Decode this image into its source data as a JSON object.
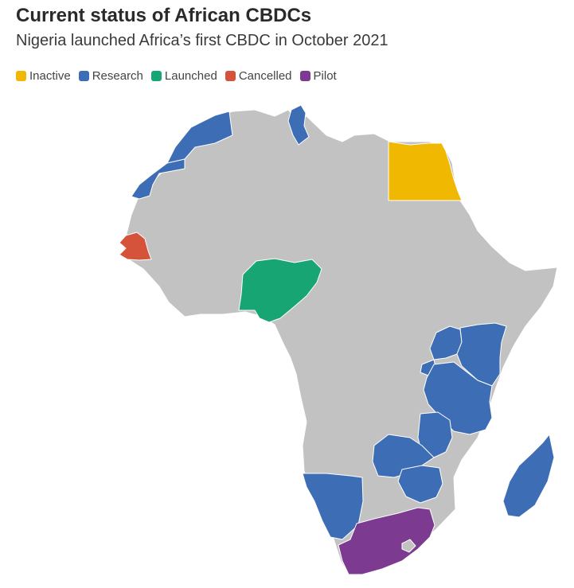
{
  "header": {
    "title": "Current status of African CBDCs",
    "subtitle": "Nigeria launched Africa’s first CBDC in October 2021"
  },
  "legend": [
    {
      "label": "Inactive",
      "status": "inactive"
    },
    {
      "label": "Research",
      "status": "research"
    },
    {
      "label": "Launched",
      "status": "launched"
    },
    {
      "label": "Cancelled",
      "status": "cancelled"
    },
    {
      "label": "Pilot",
      "status": "pilot"
    }
  ],
  "colors": {
    "inactive": "#f0b800",
    "research": "#3d6db5",
    "launched": "#17a673",
    "cancelled": "#d5533b",
    "pilot": "#7c3b91",
    "none": "#c2c2c2",
    "border": "#ffffff"
  },
  "countries": [
    {
      "name": "Morocco",
      "status": "research"
    },
    {
      "name": "Western Sahara",
      "status": "research"
    },
    {
      "name": "Tunisia",
      "status": "research"
    },
    {
      "name": "Egypt",
      "status": "inactive"
    },
    {
      "name": "Senegal",
      "status": "cancelled"
    },
    {
      "name": "Nigeria",
      "status": "launched"
    },
    {
      "name": "Uganda",
      "status": "research"
    },
    {
      "name": "Kenya",
      "status": "research"
    },
    {
      "name": "Rwanda",
      "status": "research"
    },
    {
      "name": "Tanzania",
      "status": "research"
    },
    {
      "name": "Malawi",
      "status": "research"
    },
    {
      "name": "Zambia",
      "status": "research"
    },
    {
      "name": "Zimbabwe",
      "status": "research"
    },
    {
      "name": "Namibia",
      "status": "research"
    },
    {
      "name": "Madagascar",
      "status": "research"
    },
    {
      "name": "South Africa",
      "status": "pilot"
    }
  ]
}
